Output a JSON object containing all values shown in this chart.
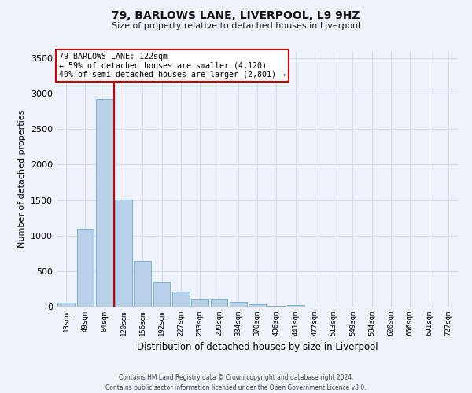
{
  "title1": "79, BARLOWS LANE, LIVERPOOL, L9 9HZ",
  "title2": "Size of property relative to detached houses in Liverpool",
  "xlabel": "Distribution of detached houses by size in Liverpool",
  "ylabel": "Number of detached properties",
  "footnote": "Contains HM Land Registry data © Crown copyright and database right 2024.\nContains public sector information licensed under the Open Government Licence v3.0.",
  "bar_labels": [
    "13sqm",
    "49sqm",
    "84sqm",
    "120sqm",
    "156sqm",
    "192sqm",
    "227sqm",
    "263sqm",
    "299sqm",
    "334sqm",
    "370sqm",
    "406sqm",
    "441sqm",
    "477sqm",
    "513sqm",
    "549sqm",
    "584sqm",
    "620sqm",
    "656sqm",
    "691sqm",
    "727sqm"
  ],
  "bar_values": [
    55,
    1100,
    2920,
    1510,
    645,
    340,
    215,
    105,
    95,
    70,
    35,
    10,
    25,
    5,
    0,
    0,
    0,
    0,
    0,
    0,
    0
  ],
  "bar_color": "#b8d0e8",
  "bar_edgecolor": "#6aaad4",
  "ylim": [
    0,
    3600
  ],
  "yticks": [
    0,
    500,
    1000,
    1500,
    2000,
    2500,
    3000,
    3500
  ],
  "red_line_x": 2.5,
  "annotation_title": "79 BARLOWS LANE: 122sqm",
  "annotation_line1": "← 59% of detached houses are smaller (4,120)",
  "annotation_line2": "40% of semi-detached houses are larger (2,801) →",
  "annotation_box_color": "#ffffff",
  "annotation_box_edgecolor": "#cc0000",
  "grid_color": "#d4dce8",
  "background_color": "#edf2fb"
}
